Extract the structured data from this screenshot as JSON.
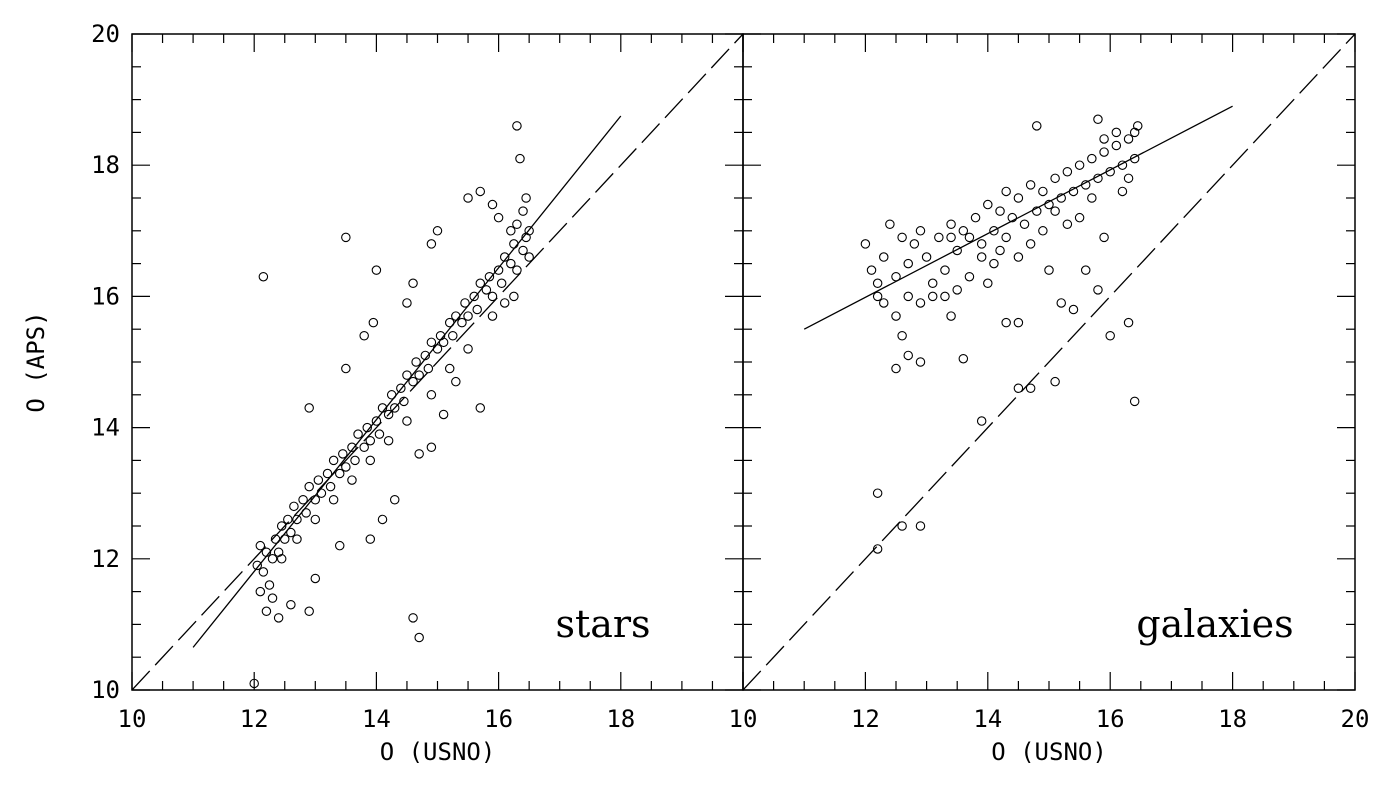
{
  "figure": {
    "ylabel": "O (APS)",
    "colors": {
      "ink": "#000000",
      "background": "#ffffff"
    }
  },
  "chart_data": [
    {
      "type": "scatter",
      "panel_label": "stars",
      "xlabel": "O (USNO)",
      "ylabel": "O (APS)",
      "xlim": [
        10,
        20
      ],
      "ylim": [
        10,
        20
      ],
      "xticks": [
        "10",
        "12",
        "14",
        "16",
        "18"
      ],
      "yticks": [
        "10",
        "12",
        "14",
        "16",
        "18",
        "20"
      ],
      "marker": "open-circle",
      "series": [
        {
          "values": [
            [
              12.05,
              11.9
            ],
            [
              12.1,
              11.5
            ],
            [
              12.1,
              12.2
            ],
            [
              12.15,
              11.8
            ],
            [
              12.2,
              12.1
            ],
            [
              12.25,
              11.6
            ],
            [
              12.3,
              12.0
            ],
            [
              12.35,
              12.3
            ],
            [
              12.4,
              12.1
            ],
            [
              12.45,
              12.5
            ],
            [
              12.5,
              12.3
            ],
            [
              12.55,
              12.6
            ],
            [
              12.6,
              12.4
            ],
            [
              12.65,
              12.8
            ],
            [
              12.7,
              12.6
            ],
            [
              12.8,
              12.9
            ],
            [
              12.85,
              12.7
            ],
            [
              12.9,
              13.1
            ],
            [
              13.0,
              12.9
            ],
            [
              13.05,
              13.2
            ],
            [
              13.1,
              13.0
            ],
            [
              13.2,
              13.3
            ],
            [
              13.25,
              13.1
            ],
            [
              13.3,
              13.5
            ],
            [
              13.4,
              13.3
            ],
            [
              13.45,
              13.6
            ],
            [
              13.5,
              13.4
            ],
            [
              13.6,
              13.7
            ],
            [
              13.65,
              13.5
            ],
            [
              13.7,
              13.9
            ],
            [
              13.8,
              13.7
            ],
            [
              13.85,
              14.0
            ],
            [
              13.9,
              13.8
            ],
            [
              14.0,
              14.1
            ],
            [
              14.05,
              13.9
            ],
            [
              14.1,
              14.3
            ],
            [
              14.2,
              14.2
            ],
            [
              14.25,
              14.5
            ],
            [
              14.3,
              14.3
            ],
            [
              14.4,
              14.6
            ],
            [
              14.45,
              14.4
            ],
            [
              14.5,
              14.8
            ],
            [
              14.6,
              14.7
            ],
            [
              14.65,
              15.0
            ],
            [
              14.7,
              14.8
            ],
            [
              14.8,
              15.1
            ],
            [
              14.85,
              14.9
            ],
            [
              14.9,
              15.3
            ],
            [
              15.0,
              15.2
            ],
            [
              15.05,
              15.4
            ],
            [
              15.1,
              15.3
            ],
            [
              15.2,
              15.6
            ],
            [
              15.25,
              15.4
            ],
            [
              15.3,
              15.7
            ],
            [
              15.4,
              15.6
            ],
            [
              15.45,
              15.9
            ],
            [
              15.5,
              15.7
            ],
            [
              15.6,
              16.0
            ],
            [
              15.65,
              15.8
            ],
            [
              15.7,
              16.2
            ],
            [
              15.8,
              16.1
            ],
            [
              15.85,
              16.3
            ],
            [
              15.9,
              16.0
            ],
            [
              16.0,
              16.4
            ],
            [
              16.05,
              16.2
            ],
            [
              16.1,
              16.6
            ],
            [
              16.2,
              16.5
            ],
            [
              16.25,
              16.8
            ],
            [
              16.3,
              16.4
            ],
            [
              16.4,
              16.7
            ],
            [
              16.45,
              16.9
            ],
            [
              16.5,
              17.0
            ],
            [
              16.5,
              16.6
            ],
            [
              16.4,
              17.3
            ],
            [
              16.3,
              17.1
            ],
            [
              16.2,
              17.0
            ],
            [
              16.0,
              17.2
            ],
            [
              15.9,
              17.4
            ],
            [
              15.7,
              17.6
            ],
            [
              16.35,
              18.1
            ],
            [
              16.45,
              17.5
            ],
            [
              16.25,
              16.0
            ],
            [
              16.1,
              15.9
            ],
            [
              15.9,
              15.7
            ],
            [
              15.5,
              15.2
            ],
            [
              15.2,
              14.9
            ],
            [
              14.9,
              14.5
            ],
            [
              14.5,
              14.1
            ],
            [
              14.2,
              13.8
            ],
            [
              13.9,
              13.5
            ],
            [
              13.6,
              13.2
            ],
            [
              13.3,
              12.9
            ],
            [
              13.0,
              12.6
            ],
            [
              12.7,
              12.3
            ],
            [
              12.45,
              12.0
            ],
            [
              12.3,
              11.4
            ],
            [
              12.2,
              11.2
            ],
            [
              12.4,
              11.1
            ],
            [
              12.6,
              11.3
            ],
            [
              12.9,
              11.2
            ],
            [
              13.0,
              11.7
            ],
            [
              12.9,
              14.3
            ],
            [
              13.5,
              14.9
            ],
            [
              13.5,
              16.9
            ],
            [
              14.0,
              16.4
            ],
            [
              14.5,
              15.9
            ],
            [
              14.9,
              16.8
            ],
            [
              15.0,
              17.0
            ],
            [
              15.5,
              17.5
            ],
            [
              15.7,
              14.3
            ],
            [
              15.1,
              14.2
            ],
            [
              14.9,
              13.7
            ],
            [
              14.3,
              12.9
            ],
            [
              14.1,
              12.6
            ],
            [
              13.9,
              12.3
            ],
            [
              13.4,
              12.2
            ],
            [
              14.7,
              13.6
            ],
            [
              15.3,
              14.7
            ],
            [
              16.3,
              18.6
            ],
            [
              12.15,
              16.3
            ],
            [
              12.0,
              10.1
            ],
            [
              14.6,
              11.1
            ],
            [
              14.7,
              10.8
            ],
            [
              13.8,
              15.4
            ],
            [
              13.95,
              15.6
            ],
            [
              14.6,
              16.2
            ]
          ]
        }
      ],
      "lines": [
        {
          "style": "solid",
          "points": [
            [
              11.0,
              10.65
            ],
            [
              18.0,
              18.75
            ]
          ]
        },
        {
          "style": "dashed",
          "points": [
            [
              10,
              10
            ],
            [
              20,
              20
            ]
          ]
        }
      ]
    },
    {
      "type": "scatter",
      "panel_label": "galaxies",
      "xlabel": "O (USNO)",
      "ylabel": "",
      "xlim": [
        10,
        20
      ],
      "ylim": [
        10,
        20
      ],
      "xticks": [
        "10",
        "12",
        "14",
        "16",
        "18",
        "20"
      ],
      "yticks": [],
      "marker": "open-circle",
      "series": [
        {
          "values": [
            [
              12.0,
              16.8
            ],
            [
              12.1,
              16.4
            ],
            [
              12.2,
              16.2
            ],
            [
              12.3,
              16.6
            ],
            [
              12.4,
              17.1
            ],
            [
              12.5,
              16.3
            ],
            [
              12.6,
              16.9
            ],
            [
              12.7,
              16.5
            ],
            [
              12.8,
              16.8
            ],
            [
              12.9,
              17.0
            ],
            [
              13.0,
              16.6
            ],
            [
              13.1,
              16.2
            ],
            [
              13.2,
              16.9
            ],
            [
              13.3,
              16.4
            ],
            [
              13.4,
              17.1
            ],
            [
              13.5,
              16.7
            ],
            [
              13.6,
              17.0
            ],
            [
              13.7,
              16.9
            ],
            [
              13.8,
              17.2
            ],
            [
              13.9,
              16.8
            ],
            [
              14.0,
              17.4
            ],
            [
              14.1,
              17.0
            ],
            [
              14.2,
              17.3
            ],
            [
              14.3,
              17.6
            ],
            [
              14.4,
              17.2
            ],
            [
              14.5,
              17.5
            ],
            [
              14.6,
              17.1
            ],
            [
              14.7,
              17.7
            ],
            [
              14.8,
              17.3
            ],
            [
              14.9,
              17.6
            ],
            [
              15.0,
              17.4
            ],
            [
              15.1,
              17.8
            ],
            [
              15.2,
              17.5
            ],
            [
              15.3,
              17.9
            ],
            [
              15.4,
              17.6
            ],
            [
              15.5,
              18.0
            ],
            [
              15.6,
              17.7
            ],
            [
              15.7,
              18.1
            ],
            [
              15.8,
              17.8
            ],
            [
              15.9,
              18.2
            ],
            [
              16.0,
              17.9
            ],
            [
              16.1,
              18.3
            ],
            [
              16.2,
              18.0
            ],
            [
              16.3,
              18.4
            ],
            [
              16.4,
              18.1
            ],
            [
              16.45,
              18.6
            ],
            [
              16.4,
              18.5
            ],
            [
              16.3,
              17.8
            ],
            [
              16.2,
              17.6
            ],
            [
              16.1,
              18.5
            ],
            [
              15.9,
              18.4
            ],
            [
              15.7,
              17.5
            ],
            [
              15.5,
              17.2
            ],
            [
              15.3,
              17.1
            ],
            [
              15.1,
              17.3
            ],
            [
              14.9,
              17.0
            ],
            [
              14.7,
              16.8
            ],
            [
              14.5,
              16.6
            ],
            [
              14.3,
              16.9
            ],
            [
              14.1,
              16.5
            ],
            [
              13.9,
              16.6
            ],
            [
              13.7,
              16.3
            ],
            [
              13.5,
              16.1
            ],
            [
              13.3,
              16.0
            ],
            [
              13.1,
              16.0
            ],
            [
              12.9,
              15.9
            ],
            [
              12.7,
              16.0
            ],
            [
              12.5,
              15.7
            ],
            [
              12.3,
              15.9
            ],
            [
              12.2,
              16.0
            ],
            [
              12.5,
              14.9
            ],
            [
              12.6,
              15.4
            ],
            [
              12.7,
              15.1
            ],
            [
              12.9,
              15.0
            ],
            [
              13.4,
              15.7
            ],
            [
              13.6,
              15.05
            ],
            [
              14.3,
              15.6
            ],
            [
              14.5,
              15.6
            ],
            [
              15.2,
              15.9
            ],
            [
              15.4,
              15.8
            ],
            [
              15.6,
              16.4
            ],
            [
              15.8,
              16.1
            ],
            [
              16.0,
              15.4
            ],
            [
              16.3,
              15.6
            ],
            [
              16.4,
              14.4
            ],
            [
              14.8,
              18.6
            ],
            [
              15.8,
              18.7
            ],
            [
              13.9,
              14.1
            ],
            [
              14.5,
              14.6
            ],
            [
              14.7,
              14.6
            ],
            [
              15.1,
              14.7
            ],
            [
              12.2,
              13.0
            ],
            [
              12.2,
              12.15
            ],
            [
              12.6,
              12.5
            ],
            [
              12.9,
              12.5
            ],
            [
              13.4,
              16.9
            ],
            [
              14.0,
              16.2
            ],
            [
              14.2,
              16.7
            ],
            [
              15.0,
              16.4
            ],
            [
              15.9,
              16.9
            ]
          ]
        }
      ],
      "lines": [
        {
          "style": "solid",
          "points": [
            [
              11.0,
              15.5
            ],
            [
              18.0,
              18.9
            ]
          ]
        },
        {
          "style": "dashed",
          "points": [
            [
              10,
              10
            ],
            [
              20,
              20
            ]
          ]
        }
      ]
    }
  ]
}
